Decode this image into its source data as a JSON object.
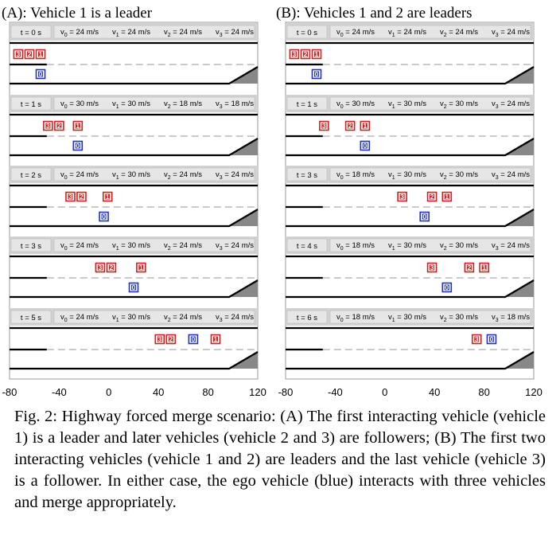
{
  "panels": [
    {
      "title": "(A): Vehicle 1 is a leader",
      "scenes": [
        {
          "time": "t = 0 s",
          "speeds": [
            {
              "sym": "v",
              "sub": "0",
              "val": " = 24 m/s"
            },
            {
              "sym": "v",
              "sub": "1",
              "val": " = 24 m/s"
            },
            {
              "sym": "v",
              "sub": "2",
              "val": " = 24 m/s"
            },
            {
              "sym": "v",
              "sub": "3",
              "val": " = 24 m/s"
            }
          ],
          "vehicles": [
            {
              "id": "3",
              "x": -73,
              "lane": "main"
            },
            {
              "id": "2",
              "x": -64,
              "lane": "main"
            },
            {
              "id": "1",
              "x": -55,
              "lane": "main"
            },
            {
              "id": "0",
              "x": -55,
              "lane": "merge"
            }
          ]
        },
        {
          "time": "t = 1 s",
          "speeds": [
            {
              "sym": "v",
              "sub": "0",
              "val": " = 30 m/s"
            },
            {
              "sym": "v",
              "sub": "1",
              "val": " = 30 m/s"
            },
            {
              "sym": "v",
              "sub": "2",
              "val": " = 18 m/s"
            },
            {
              "sym": "v",
              "sub": "3",
              "val": " = 18 m/s"
            }
          ],
          "vehicles": [
            {
              "id": "3",
              "x": -49,
              "lane": "main"
            },
            {
              "id": "2",
              "x": -40,
              "lane": "main"
            },
            {
              "id": "1",
              "x": -25,
              "lane": "main"
            },
            {
              "id": "0",
              "x": -25,
              "lane": "merge"
            }
          ]
        },
        {
          "time": "t = 2 s",
          "speeds": [
            {
              "sym": "v",
              "sub": "0",
              "val": " = 24 m/s"
            },
            {
              "sym": "v",
              "sub": "1",
              "val": " = 30 m/s"
            },
            {
              "sym": "v",
              "sub": "2",
              "val": " = 24 m/s"
            },
            {
              "sym": "v",
              "sub": "3",
              "val": " = 24 m/s"
            }
          ],
          "vehicles": [
            {
              "id": "3",
              "x": -31,
              "lane": "main"
            },
            {
              "id": "2",
              "x": -22,
              "lane": "main"
            },
            {
              "id": "1",
              "x": -1,
              "lane": "main"
            },
            {
              "id": "0",
              "x": -4,
              "lane": "merge"
            }
          ]
        },
        {
          "time": "t = 3 s",
          "speeds": [
            {
              "sym": "v",
              "sub": "0",
              "val": " = 24 m/s"
            },
            {
              "sym": "v",
              "sub": "1",
              "val": " = 30 m/s"
            },
            {
              "sym": "v",
              "sub": "2",
              "val": " = 24 m/s"
            },
            {
              "sym": "v",
              "sub": "3",
              "val": " = 24 m/s"
            }
          ],
          "vehicles": [
            {
              "id": "3",
              "x": -7,
              "lane": "main"
            },
            {
              "id": "2",
              "x": 2,
              "lane": "main"
            },
            {
              "id": "1",
              "x": 26,
              "lane": "main"
            },
            {
              "id": "0",
              "x": 20,
              "lane": "merge"
            }
          ]
        },
        {
          "time": "t = 5 s",
          "speeds": [
            {
              "sym": "v",
              "sub": "0",
              "val": " = 24 m/s"
            },
            {
              "sym": "v",
              "sub": "1",
              "val": " = 30 m/s"
            },
            {
              "sym": "v",
              "sub": "2",
              "val": " = 24 m/s"
            },
            {
              "sym": "v",
              "sub": "3",
              "val": " = 24 m/s"
            }
          ],
          "vehicles": [
            {
              "id": "3",
              "x": 41,
              "lane": "main"
            },
            {
              "id": "2",
              "x": 50,
              "lane": "main"
            },
            {
              "id": "0",
              "x": 68,
              "lane": "main"
            },
            {
              "id": "1",
              "x": 86,
              "lane": "main"
            }
          ]
        }
      ]
    },
    {
      "title": "(B): Vehicles 1 and 2 are leaders",
      "scenes": [
        {
          "time": "t = 0 s",
          "speeds": [
            {
              "sym": "v",
              "sub": "0",
              "val": " = 24 m/s"
            },
            {
              "sym": "v",
              "sub": "1",
              "val": " = 24 m/s"
            },
            {
              "sym": "v",
              "sub": "2",
              "val": " = 24 m/s"
            },
            {
              "sym": "v",
              "sub": "3",
              "val": " = 24 m/s"
            }
          ],
          "vehicles": [
            {
              "id": "3",
              "x": -73,
              "lane": "main"
            },
            {
              "id": "2",
              "x": -64,
              "lane": "main"
            },
            {
              "id": "1",
              "x": -55,
              "lane": "main"
            },
            {
              "id": "0",
              "x": -55,
              "lane": "merge"
            }
          ]
        },
        {
          "time": "t = 1 s",
          "speeds": [
            {
              "sym": "v",
              "sub": "0",
              "val": " = 30 m/s"
            },
            {
              "sym": "v",
              "sub": "1",
              "val": " = 30 m/s"
            },
            {
              "sym": "v",
              "sub": "2",
              "val": " = 30 m/s"
            },
            {
              "sym": "v",
              "sub": "3",
              "val": " = 24 m/s"
            }
          ],
          "vehicles": [
            {
              "id": "3",
              "x": -49,
              "lane": "main"
            },
            {
              "id": "2",
              "x": -28,
              "lane": "main"
            },
            {
              "id": "1",
              "x": -16,
              "lane": "main"
            },
            {
              "id": "0",
              "x": -16,
              "lane": "merge"
            }
          ]
        },
        {
          "time": "t = 3 s",
          "speeds": [
            {
              "sym": "v",
              "sub": "0",
              "val": " = 18 m/s"
            },
            {
              "sym": "v",
              "sub": "1",
              "val": " = 30 m/s"
            },
            {
              "sym": "v",
              "sub": "2",
              "val": " = 30 m/s"
            },
            {
              "sym": "v",
              "sub": "3",
              "val": " = 24 m/s"
            }
          ],
          "vehicles": [
            {
              "id": "3",
              "x": 14,
              "lane": "main"
            },
            {
              "id": "2",
              "x": 38,
              "lane": "main"
            },
            {
              "id": "1",
              "x": 50,
              "lane": "main"
            },
            {
              "id": "0",
              "x": 32,
              "lane": "merge"
            }
          ]
        },
        {
          "time": "t = 4 s",
          "speeds": [
            {
              "sym": "v",
              "sub": "0",
              "val": " = 18 m/s"
            },
            {
              "sym": "v",
              "sub": "1",
              "val": " = 30 m/s"
            },
            {
              "sym": "v",
              "sub": "2",
              "val": " = 30 m/s"
            },
            {
              "sym": "v",
              "sub": "3",
              "val": " = 24 m/s"
            }
          ],
          "vehicles": [
            {
              "id": "3",
              "x": 38,
              "lane": "main"
            },
            {
              "id": "2",
              "x": 68,
              "lane": "main"
            },
            {
              "id": "1",
              "x": 80,
              "lane": "main"
            },
            {
              "id": "0",
              "x": 50,
              "lane": "merge"
            }
          ]
        },
        {
          "time": "t = 6 s",
          "speeds": [
            {
              "sym": "v",
              "sub": "0",
              "val": " = 18 m/s"
            },
            {
              "sym": "v",
              "sub": "1",
              "val": " = 30 m/s"
            },
            {
              "sym": "v",
              "sub": "2",
              "val": " = 30 m/s"
            },
            {
              "sym": "v",
              "sub": "3",
              "val": " = 18 m/s"
            }
          ],
          "vehicles": [
            {
              "id": "3",
              "x": 74,
              "lane": "main"
            },
            {
              "id": "0",
              "x": 86,
              "lane": "main"
            }
          ]
        }
      ]
    }
  ],
  "x_axis": {
    "ticks": [
      -80,
      -40,
      0,
      40,
      80,
      120
    ],
    "range": [
      -80,
      120
    ]
  },
  "colors": {
    "leader_follower": "#cc2222",
    "ego": "#2233bb",
    "ramp": "#888888",
    "header_bg": "#e6e6e6",
    "frame_bg": "#d2d2d2"
  },
  "caption": "Fig. 2: Highway forced merge scenario: (A) The first interacting vehicle (vehicle 1) is a leader and later vehicles (vehicle 2 and 3) are followers; (B) The first two interacting vehicles (vehicle 1 and 2) are leaders and the last vehicle (vehicle 3) is a follower. In either case, the ego vehicle (blue) interacts with three vehicles and merge appropriately."
}
